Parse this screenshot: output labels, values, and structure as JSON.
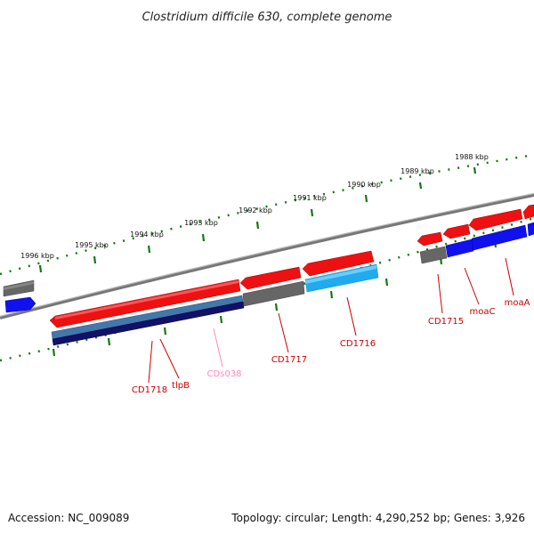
{
  "title": "Clostridium difficile 630, complete genome",
  "footer": {
    "accession": "Accession: NC_009089",
    "topology": "Topology: circular; Length: 4,290,252 bp; Genes: 3,926"
  },
  "scale_labels": [
    "1988 kbp",
    "1989 kbp",
    "1990 kbp",
    "1991 kbp",
    "1992 kbp",
    "1993 kbp",
    "1994 kbp",
    "1995 kbp",
    "1996 kbp"
  ],
  "gene_labels": [
    {
      "text": "CD1715",
      "color": "#cc0000"
    },
    {
      "text": "moaC",
      "color": "#cc0000"
    },
    {
      "text": "moaA",
      "color": "#cc0000"
    },
    {
      "text": "CD1716",
      "color": "#cc0000"
    },
    {
      "text": "CD1717",
      "color": "#cc0000"
    },
    {
      "text": "CDs038",
      "color": "#ff88bb"
    },
    {
      "text": "tlpB",
      "color": "#cc0000"
    },
    {
      "text": "CD1718",
      "color": "#cc0000"
    }
  ],
  "colors": {
    "backbone": "#777777",
    "tick": "#117711",
    "red": "#ee1111",
    "gray": "#666666",
    "blue": "#1111ee",
    "light_blue": "#22aaee",
    "steel_blue": "#4477aa",
    "navy": "#111166"
  }
}
